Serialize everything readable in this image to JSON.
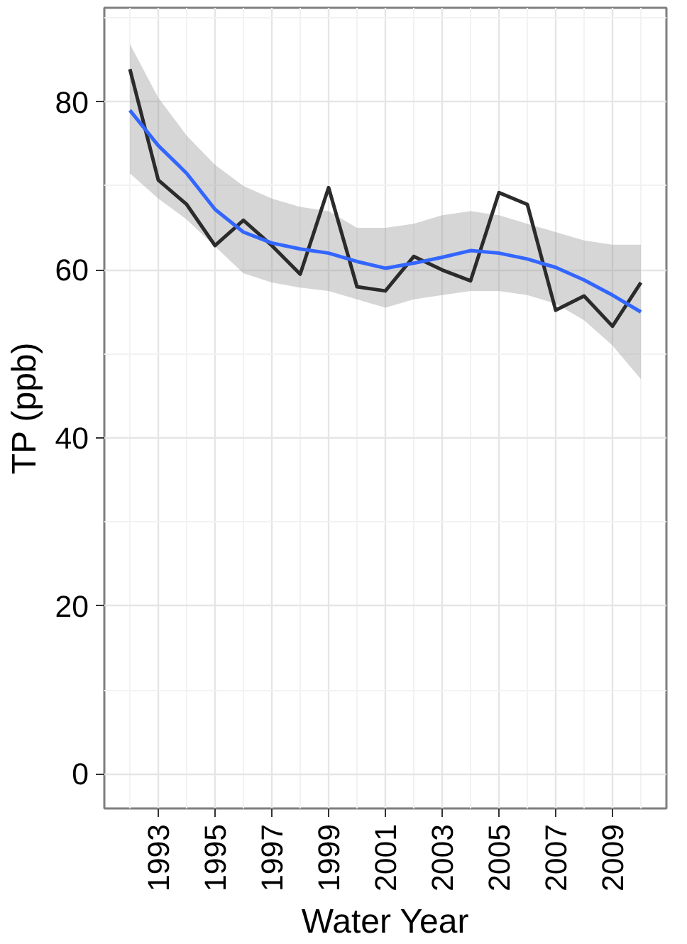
{
  "chart_data": {
    "type": "line",
    "xlabel": "Water Year",
    "ylabel": "TP (ppb)",
    "x": [
      1992,
      1993,
      1994,
      1995,
      1996,
      1997,
      1998,
      1999,
      2000,
      2001,
      2002,
      2003,
      2004,
      2005,
      2006,
      2007,
      2008,
      2009,
      2010
    ],
    "series": [
      {
        "color": "#2b2b2b",
        "values": [
          83.9,
          70.7,
          67.8,
          62.9,
          65.9,
          62.9,
          59.5,
          69.8,
          58.0,
          57.5,
          61.6,
          60.0,
          58.7,
          69.2,
          67.8,
          55.2,
          56.9,
          53.3,
          58.5
        ]
      },
      {
        "type": "line",
        "color": "#3366ff",
        "values": [
          79.0,
          74.8,
          71.5,
          67.2,
          64.5,
          63.2,
          62.5,
          62.0,
          61.0,
          60.2,
          60.8,
          61.5,
          62.3,
          62.0,
          61.3,
          60.3,
          58.8,
          57.0,
          55.0
        ],
        "lower": [
          71.5,
          68.5,
          66.0,
          62.8,
          59.6,
          58.5,
          57.9,
          57.5,
          56.5,
          55.5,
          56.5,
          57.0,
          57.5,
          57.5,
          57.0,
          56.0,
          54.0,
          51.0,
          47.0
        ],
        "upper": [
          86.9,
          80.5,
          76.0,
          72.5,
          70.0,
          68.5,
          67.5,
          67.0,
          65.0,
          65.0,
          65.5,
          66.5,
          67.0,
          66.5,
          65.5,
          64.5,
          63.5,
          63.0,
          63.0
        ]
      }
    ],
    "xlim": [
      1991.1,
      2010.9
    ],
    "ylim": [
      -4.1,
      91.2
    ],
    "xticks": [
      1993,
      1995,
      1997,
      1999,
      2001,
      2003,
      2005,
      2007,
      2009
    ],
    "yticks": [
      0,
      20,
      40,
      60,
      80
    ],
    "grid": true
  }
}
